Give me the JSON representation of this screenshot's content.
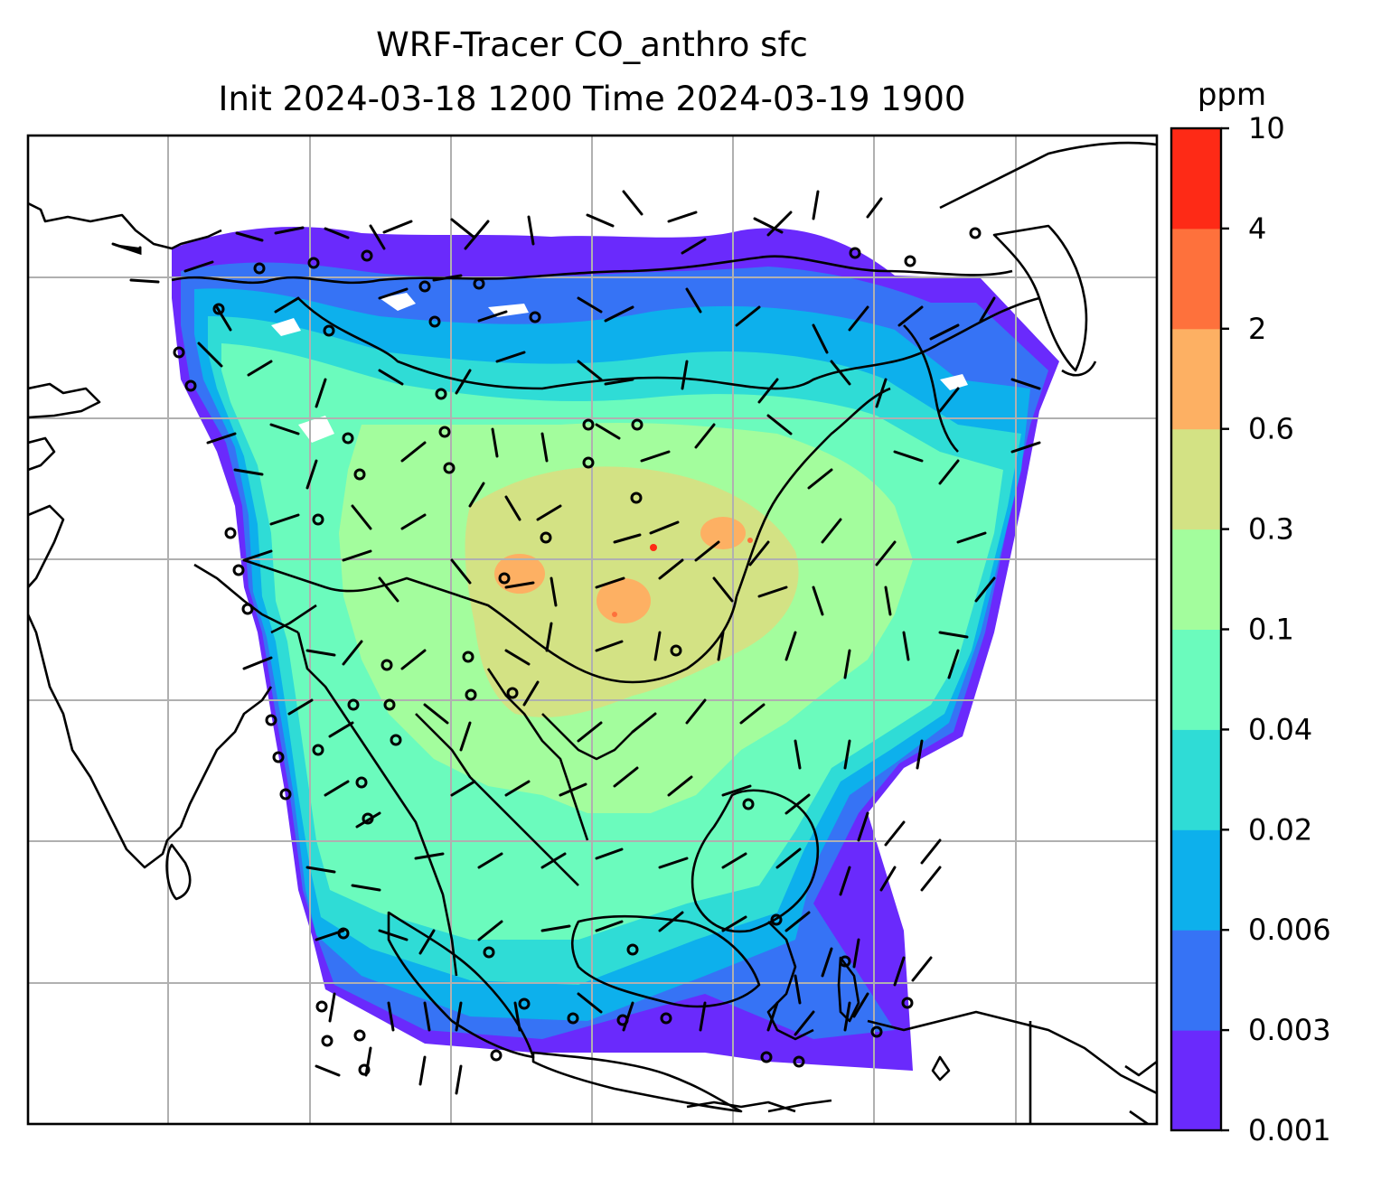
{
  "title": {
    "line1": "WRF-Tracer CO_anthro sfc",
    "line2": "Init 2024-03-18 1200 Time 2024-03-19 1900"
  },
  "colorbar": {
    "title": "ppm",
    "labels": [
      "0.001",
      "0.003",
      "0.006",
      "0.02",
      "0.04",
      "0.1",
      "0.3",
      "0.6",
      "2",
      "4",
      "10"
    ],
    "colors": [
      "#6a2afc",
      "#3673f5",
      "#0db0ec",
      "#2fdcd6",
      "#6bfbbd",
      "#a3fd9d",
      "#d3e284",
      "#fdb063",
      "#fe713c",
      "#fe2a16"
    ]
  },
  "map": {
    "type": "filled-contour with wind barbs",
    "field": "CO_anthro",
    "level": "sfc",
    "units": "ppm",
    "gridlines": true,
    "coastlines": true,
    "wind_barbs": true
  }
}
